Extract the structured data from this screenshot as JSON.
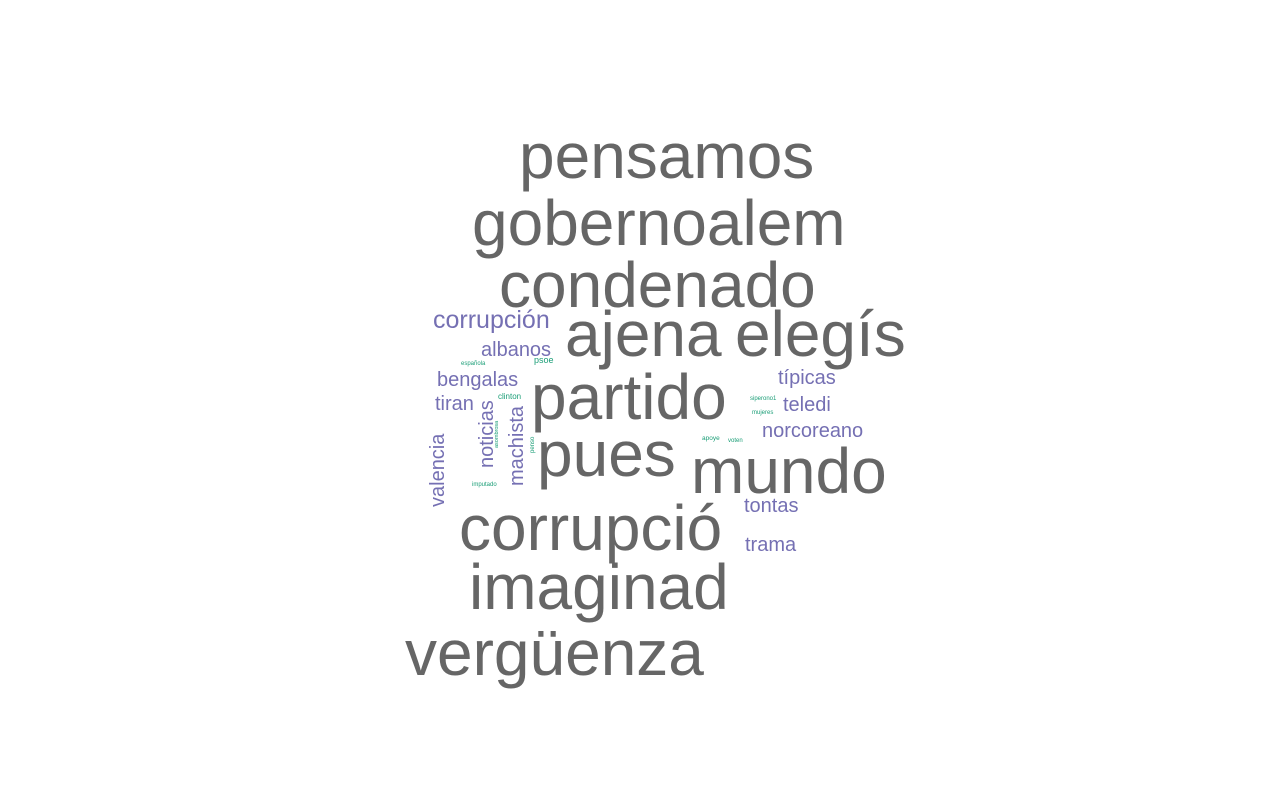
{
  "colors": {
    "large": "#666666",
    "medium": "#7570b3",
    "small": "#1b9e77",
    "background": "#ffffff"
  },
  "words": [
    {
      "text": "pensamos",
      "weight": 10,
      "tier": "large"
    },
    {
      "text": "gobernoalem",
      "weight": 10,
      "tier": "large"
    },
    {
      "text": "condenado",
      "weight": 10,
      "tier": "large"
    },
    {
      "text": "ajena",
      "weight": 10,
      "tier": "large"
    },
    {
      "text": "elegís",
      "weight": 10,
      "tier": "large"
    },
    {
      "text": "partido",
      "weight": 10,
      "tier": "large"
    },
    {
      "text": "pues",
      "weight": 10,
      "tier": "large"
    },
    {
      "text": "mundo",
      "weight": 10,
      "tier": "large"
    },
    {
      "text": "corrupció",
      "weight": 10,
      "tier": "large"
    },
    {
      "text": "imaginad",
      "weight": 10,
      "tier": "large"
    },
    {
      "text": "vergüenza",
      "weight": 10,
      "tier": "large"
    },
    {
      "text": "corrupción",
      "weight": 4,
      "tier": "medium"
    },
    {
      "text": "albanos",
      "weight": 3,
      "tier": "medium"
    },
    {
      "text": "bengalas",
      "weight": 3,
      "tier": "medium"
    },
    {
      "text": "tiran",
      "weight": 3,
      "tier": "medium"
    },
    {
      "text": "noticias",
      "weight": 3,
      "tier": "medium"
    },
    {
      "text": "machista",
      "weight": 3,
      "tier": "medium"
    },
    {
      "text": "valencia",
      "weight": 3,
      "tier": "medium"
    },
    {
      "text": "típicas",
      "weight": 3,
      "tier": "medium"
    },
    {
      "text": "teledi",
      "weight": 3,
      "tier": "medium"
    },
    {
      "text": "norcoreano",
      "weight": 3,
      "tier": "medium"
    },
    {
      "text": "tontas",
      "weight": 3,
      "tier": "medium"
    },
    {
      "text": "trama",
      "weight": 3,
      "tier": "medium"
    },
    {
      "text": "psoe",
      "weight": 1,
      "tier": "small"
    },
    {
      "text": "española",
      "weight": 1,
      "tier": "small"
    },
    {
      "text": "clinton",
      "weight": 1,
      "tier": "small"
    },
    {
      "text": "asombrosa",
      "weight": 1,
      "tier": "small"
    },
    {
      "text": "penso",
      "weight": 1,
      "tier": "small"
    },
    {
      "text": "imputado",
      "weight": 1,
      "tier": "small"
    },
    {
      "text": "siperono1",
      "weight": 1,
      "tier": "small"
    },
    {
      "text": "mujeres",
      "weight": 1,
      "tier": "small"
    },
    {
      "text": "apoye",
      "weight": 1,
      "tier": "small"
    },
    {
      "text": "voten",
      "weight": 1,
      "tier": "small"
    }
  ]
}
